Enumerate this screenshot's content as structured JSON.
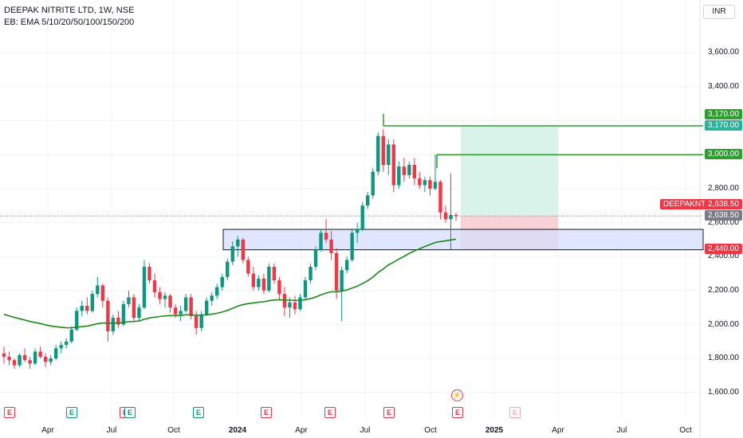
{
  "header": {
    "symbol_line": "DEEPAK NITRITE LTD, 1W, NSE",
    "indicator_line": "EB: EMA 5/10/20/50/100/150/200",
    "currency": "INR"
  },
  "colors": {
    "up": "#089981",
    "down": "#f23645",
    "ema": "#1b8a1b",
    "target_line": "#2e9e2e",
    "zone_fill": "#d6defe",
    "profit_fill": "#d9f2ea",
    "loss_fill": "#f9d2d6"
  },
  "chart_data": {
    "type": "candlestick",
    "ylim": [
      1520,
      3760
    ],
    "y_ticks": [
      "3,600.00",
      "3,400.00",
      "2,800.00",
      "2,600.00",
      "2,400.00",
      "2,200.00",
      "2,000.00",
      "1,800.00",
      "1,600.00"
    ],
    "x_ticks": [
      {
        "label": "Apr",
        "bold": false
      },
      {
        "label": "Jul",
        "bold": false
      },
      {
        "label": "Oct",
        "bold": false
      },
      {
        "label": "2024",
        "bold": true
      },
      {
        "label": "Apr",
        "bold": false
      },
      {
        "label": "Jul",
        "bold": false
      },
      {
        "label": "Oct",
        "bold": false
      },
      {
        "label": "2025",
        "bold": true
      },
      {
        "label": "Apr",
        "bold": false
      },
      {
        "label": "Jul",
        "bold": false
      },
      {
        "label": "Oct",
        "bold": false
      }
    ],
    "candles": [
      [
        1830,
        1870,
        1770,
        1810
      ],
      [
        1810,
        1840,
        1760,
        1790
      ],
      [
        1790,
        1800,
        1740,
        1760
      ],
      [
        1760,
        1830,
        1750,
        1820
      ],
      [
        1820,
        1860,
        1780,
        1790
      ],
      [
        1790,
        1810,
        1740,
        1770
      ],
      [
        1770,
        1860,
        1760,
        1840
      ],
      [
        1840,
        1870,
        1800,
        1810
      ],
      [
        1810,
        1830,
        1750,
        1780
      ],
      [
        1780,
        1820,
        1760,
        1800
      ],
      [
        1800,
        1880,
        1790,
        1860
      ],
      [
        1860,
        1900,
        1830,
        1880
      ],
      [
        1880,
        1920,
        1860,
        1900
      ],
      [
        1900,
        1990,
        1890,
        1970
      ],
      [
        1970,
        2100,
        1960,
        2080
      ],
      [
        2080,
        2140,
        2050,
        2110
      ],
      [
        2110,
        2160,
        2060,
        2080
      ],
      [
        2080,
        2200,
        2070,
        2180
      ],
      [
        2180,
        2280,
        2160,
        2230
      ],
      [
        2230,
        2240,
        2100,
        2140
      ],
      [
        2140,
        2160,
        1900,
        1960
      ],
      [
        1960,
        2060,
        1940,
        2040
      ],
      [
        2040,
        2080,
        1980,
        2000
      ],
      [
        2000,
        2140,
        1990,
        2120
      ],
      [
        2120,
        2200,
        2100,
        2160
      ],
      [
        2160,
        2180,
        2020,
        2040
      ],
      [
        2040,
        2120,
        2020,
        2100
      ],
      [
        2100,
        2380,
        2090,
        2340
      ],
      [
        2340,
        2360,
        2240,
        2260
      ],
      [
        2260,
        2300,
        2160,
        2190
      ],
      [
        2190,
        2220,
        2120,
        2150
      ],
      [
        2150,
        2190,
        2100,
        2170
      ],
      [
        2170,
        2180,
        2070,
        2100
      ],
      [
        2100,
        2120,
        2040,
        2060
      ],
      [
        2060,
        2110,
        2020,
        2080
      ],
      [
        2080,
        2180,
        2070,
        2160
      ],
      [
        2160,
        2180,
        2030,
        2050
      ],
      [
        2050,
        2080,
        1940,
        1980
      ],
      [
        1980,
        2080,
        1960,
        2060
      ],
      [
        2060,
        2160,
        2050,
        2140
      ],
      [
        2140,
        2190,
        2110,
        2170
      ],
      [
        2170,
        2240,
        2150,
        2220
      ],
      [
        2220,
        2300,
        2200,
        2280
      ],
      [
        2280,
        2390,
        2260,
        2370
      ],
      [
        2370,
        2490,
        2350,
        2460
      ],
      [
        2460,
        2520,
        2400,
        2500
      ],
      [
        2500,
        2510,
        2360,
        2380
      ],
      [
        2380,
        2400,
        2280,
        2300
      ],
      [
        2300,
        2340,
        2200,
        2220
      ],
      [
        2220,
        2290,
        2200,
        2270
      ],
      [
        2270,
        2300,
        2180,
        2200
      ],
      [
        2200,
        2360,
        2190,
        2340
      ],
      [
        2340,
        2360,
        2240,
        2260
      ],
      [
        2260,
        2280,
        2150,
        2180
      ],
      [
        2180,
        2220,
        2050,
        2100
      ],
      [
        2100,
        2160,
        2040,
        2130
      ],
      [
        2130,
        2170,
        2060,
        2090
      ],
      [
        2090,
        2180,
        2080,
        2160
      ],
      [
        2160,
        2280,
        2150,
        2260
      ],
      [
        2260,
        2360,
        2240,
        2340
      ],
      [
        2340,
        2460,
        2320,
        2440
      ],
      [
        2440,
        2560,
        2430,
        2540
      ],
      [
        2540,
        2620,
        2480,
        2500
      ],
      [
        2500,
        2550,
        2380,
        2420
      ],
      [
        2420,
        2450,
        2150,
        2200
      ],
      [
        2200,
        2340,
        2020,
        2320
      ],
      [
        2320,
        2400,
        2300,
        2380
      ],
      [
        2380,
        2560,
        2370,
        2540
      ],
      [
        2540,
        2600,
        2480,
        2560
      ],
      [
        2560,
        2720,
        2550,
        2700
      ],
      [
        2700,
        2780,
        2680,
        2760
      ],
      [
        2760,
        2920,
        2740,
        2900
      ],
      [
        2900,
        3130,
        2880,
        3110
      ],
      [
        3110,
        3150,
        2900,
        2940
      ],
      [
        2940,
        3090,
        2880,
        3060
      ],
      [
        3060,
        3090,
        2780,
        2820
      ],
      [
        2820,
        2960,
        2800,
        2930
      ],
      [
        2930,
        2980,
        2840,
        2880
      ],
      [
        2880,
        2960,
        2860,
        2940
      ],
      [
        2940,
        2980,
        2820,
        2860
      ],
      [
        2860,
        2900,
        2800,
        2820
      ],
      [
        2820,
        2870,
        2780,
        2850
      ],
      [
        2850,
        2870,
        2760,
        2800
      ],
      [
        2800,
        3000,
        2790,
        2840
      ],
      [
        2840,
        2850,
        2620,
        2660
      ],
      [
        2660,
        2700,
        2600,
        2620
      ],
      [
        2620,
        2890,
        2440,
        2645
      ],
      [
        2645,
        2660,
        2610,
        2638.5
      ]
    ],
    "ema_series_name": "EMA 200",
    "levels": [
      {
        "label": "3,170.00",
        "price": 3170
      },
      {
        "label": "3,000.00",
        "price": 3000
      }
    ],
    "demand_zone": {
      "top": 2560,
      "bottom": 2440
    },
    "position": {
      "target": 3170,
      "entry": 2638.5,
      "stop": 2440
    },
    "price_tags": {
      "target_top": "3,170.00",
      "target_bottom": "3,170.00",
      "level_3000": "3,000.00",
      "ticker": "DEEPAKNTR",
      "last_price": "2,638.50",
      "last_price_grey": "2,638.50",
      "stop": "2,440.00"
    }
  },
  "events": [
    {
      "letter": "E",
      "style": "e-red"
    },
    {
      "letter": "E",
      "style": "e-green"
    },
    {
      "letter": "E",
      "style": "e-red"
    },
    {
      "letter": "E",
      "style": "e-green"
    },
    {
      "letter": "E",
      "style": "e-green"
    },
    {
      "letter": "E",
      "style": "e-red"
    },
    {
      "letter": "E",
      "style": "e-red"
    },
    {
      "letter": "E",
      "style": "e-red"
    },
    {
      "letter": "E",
      "style": "e-red"
    },
    {
      "letter": "E",
      "style": "e-faded"
    }
  ],
  "dividend_icon": "lightning-icon"
}
